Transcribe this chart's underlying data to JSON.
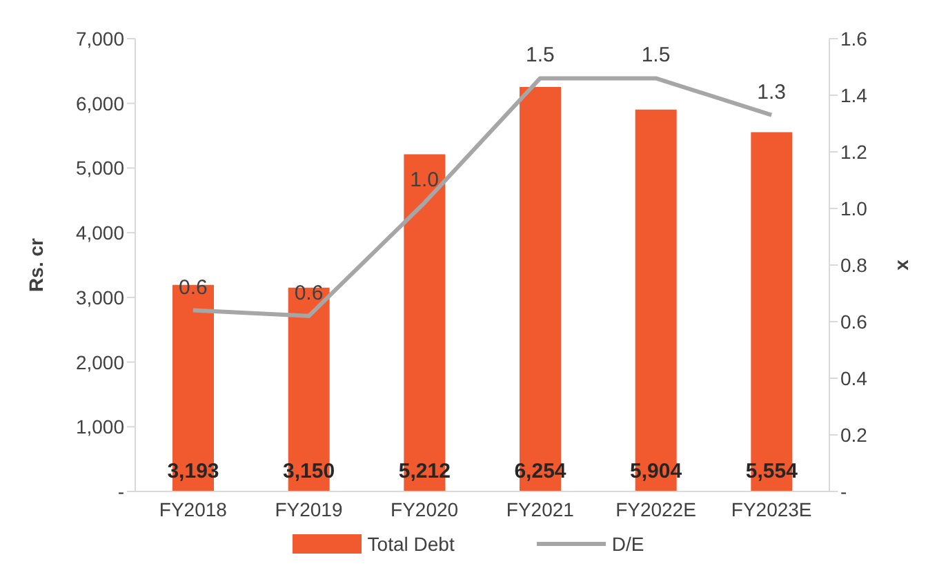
{
  "chart_data": {
    "type": "bar",
    "categories": [
      "FY2018",
      "FY2019",
      "FY2020",
      "FY2021",
      "FY2022E",
      "FY2023E"
    ],
    "ylabel": "Rs. cr",
    "y2label": "x",
    "series": [
      {
        "name": "Total Debt",
        "color": "#f15a2f",
        "values": [
          3193,
          3150,
          5212,
          6254,
          5904,
          5554
        ],
        "value_labels": [
          "3,193",
          "3,150",
          "5,212",
          "6,254",
          "5,904",
          "5,554"
        ]
      },
      {
        "name": "D/E",
        "type": "line",
        "axis": "y2",
        "color": "#a6a6a6",
        "values": [
          0.64,
          0.62,
          1.02,
          1.46,
          1.46,
          1.33
        ],
        "value_labels": [
          "0.6",
          "0.6",
          "1.0",
          "1.5",
          "1.5",
          "1.3"
        ]
      }
    ],
    "ylim": [
      0,
      7000
    ],
    "yticks": [
      {
        "value": 0,
        "label": "-"
      },
      {
        "value": 1000,
        "label": "1,000"
      },
      {
        "value": 2000,
        "label": "2,000"
      },
      {
        "value": 3000,
        "label": "3,000"
      },
      {
        "value": 4000,
        "label": "4,000"
      },
      {
        "value": 5000,
        "label": "5,000"
      },
      {
        "value": 6000,
        "label": "6,000"
      },
      {
        "value": 7000,
        "label": "7,000"
      }
    ],
    "y2lim": [
      0,
      1.6
    ],
    "y2ticks": [
      {
        "value": 0,
        "label": "-"
      },
      {
        "value": 0.2,
        "label": "0.2"
      },
      {
        "value": 0.4,
        "label": "0.4"
      },
      {
        "value": 0.6,
        "label": "0.6"
      },
      {
        "value": 0.8,
        "label": "0.8"
      },
      {
        "value": 1,
        "label": "1.0"
      },
      {
        "value": 1.2,
        "label": "1.2"
      },
      {
        "value": 1.4,
        "label": "1.4"
      },
      {
        "value": 1.6,
        "label": "1.6"
      }
    ],
    "legend": "bottom",
    "marker": "none",
    "line_style": "solid"
  }
}
